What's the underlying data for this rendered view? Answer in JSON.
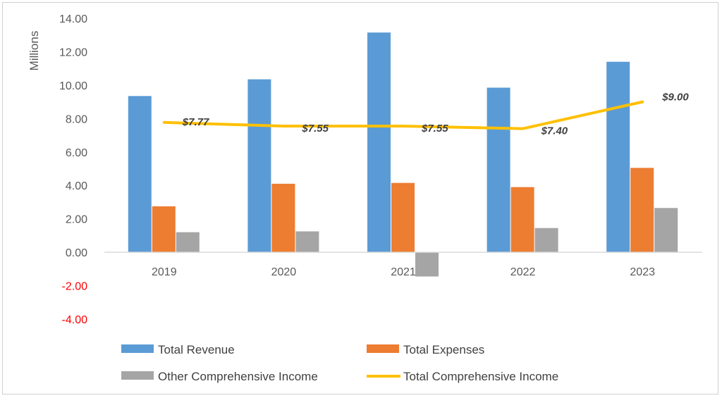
{
  "chart_data": {
    "type": "bar",
    "ylabel": "Millions",
    "ylim": [
      -4,
      14
    ],
    "yticks": [
      "14.00",
      "12.00",
      "10.00",
      "8.00",
      "6.00",
      "4.00",
      "2.00",
      "0.00",
      "-2.00",
      "-4.00"
    ],
    "negative_tick_color": "#ff0000",
    "categories": [
      "2019",
      "2020",
      "2021",
      "2022",
      "2023"
    ],
    "series": [
      {
        "name": "Total Revenue",
        "kind": "bar",
        "color": "#5b9bd5",
        "values": [
          9.35,
          10.35,
          13.15,
          9.85,
          11.4
        ]
      },
      {
        "name": "Total Expenses",
        "kind": "bar",
        "color": "#ed7d31",
        "values": [
          2.75,
          4.1,
          4.15,
          3.9,
          5.05
        ]
      },
      {
        "name": "Other Comprehensive Income",
        "kind": "bar",
        "color": "#a5a5a5",
        "values": [
          1.2,
          1.25,
          -1.45,
          1.45,
          2.65
        ]
      },
      {
        "name": "Total Comprehensive Income",
        "kind": "line",
        "color": "#ffc000",
        "values": [
          7.77,
          7.55,
          7.55,
          7.4,
          9.0
        ],
        "data_labels": [
          "$7.77",
          "$7.55",
          "$7.55",
          "$7.40",
          "$9.00"
        ]
      }
    ],
    "grid": false,
    "legend_position": "bottom"
  }
}
